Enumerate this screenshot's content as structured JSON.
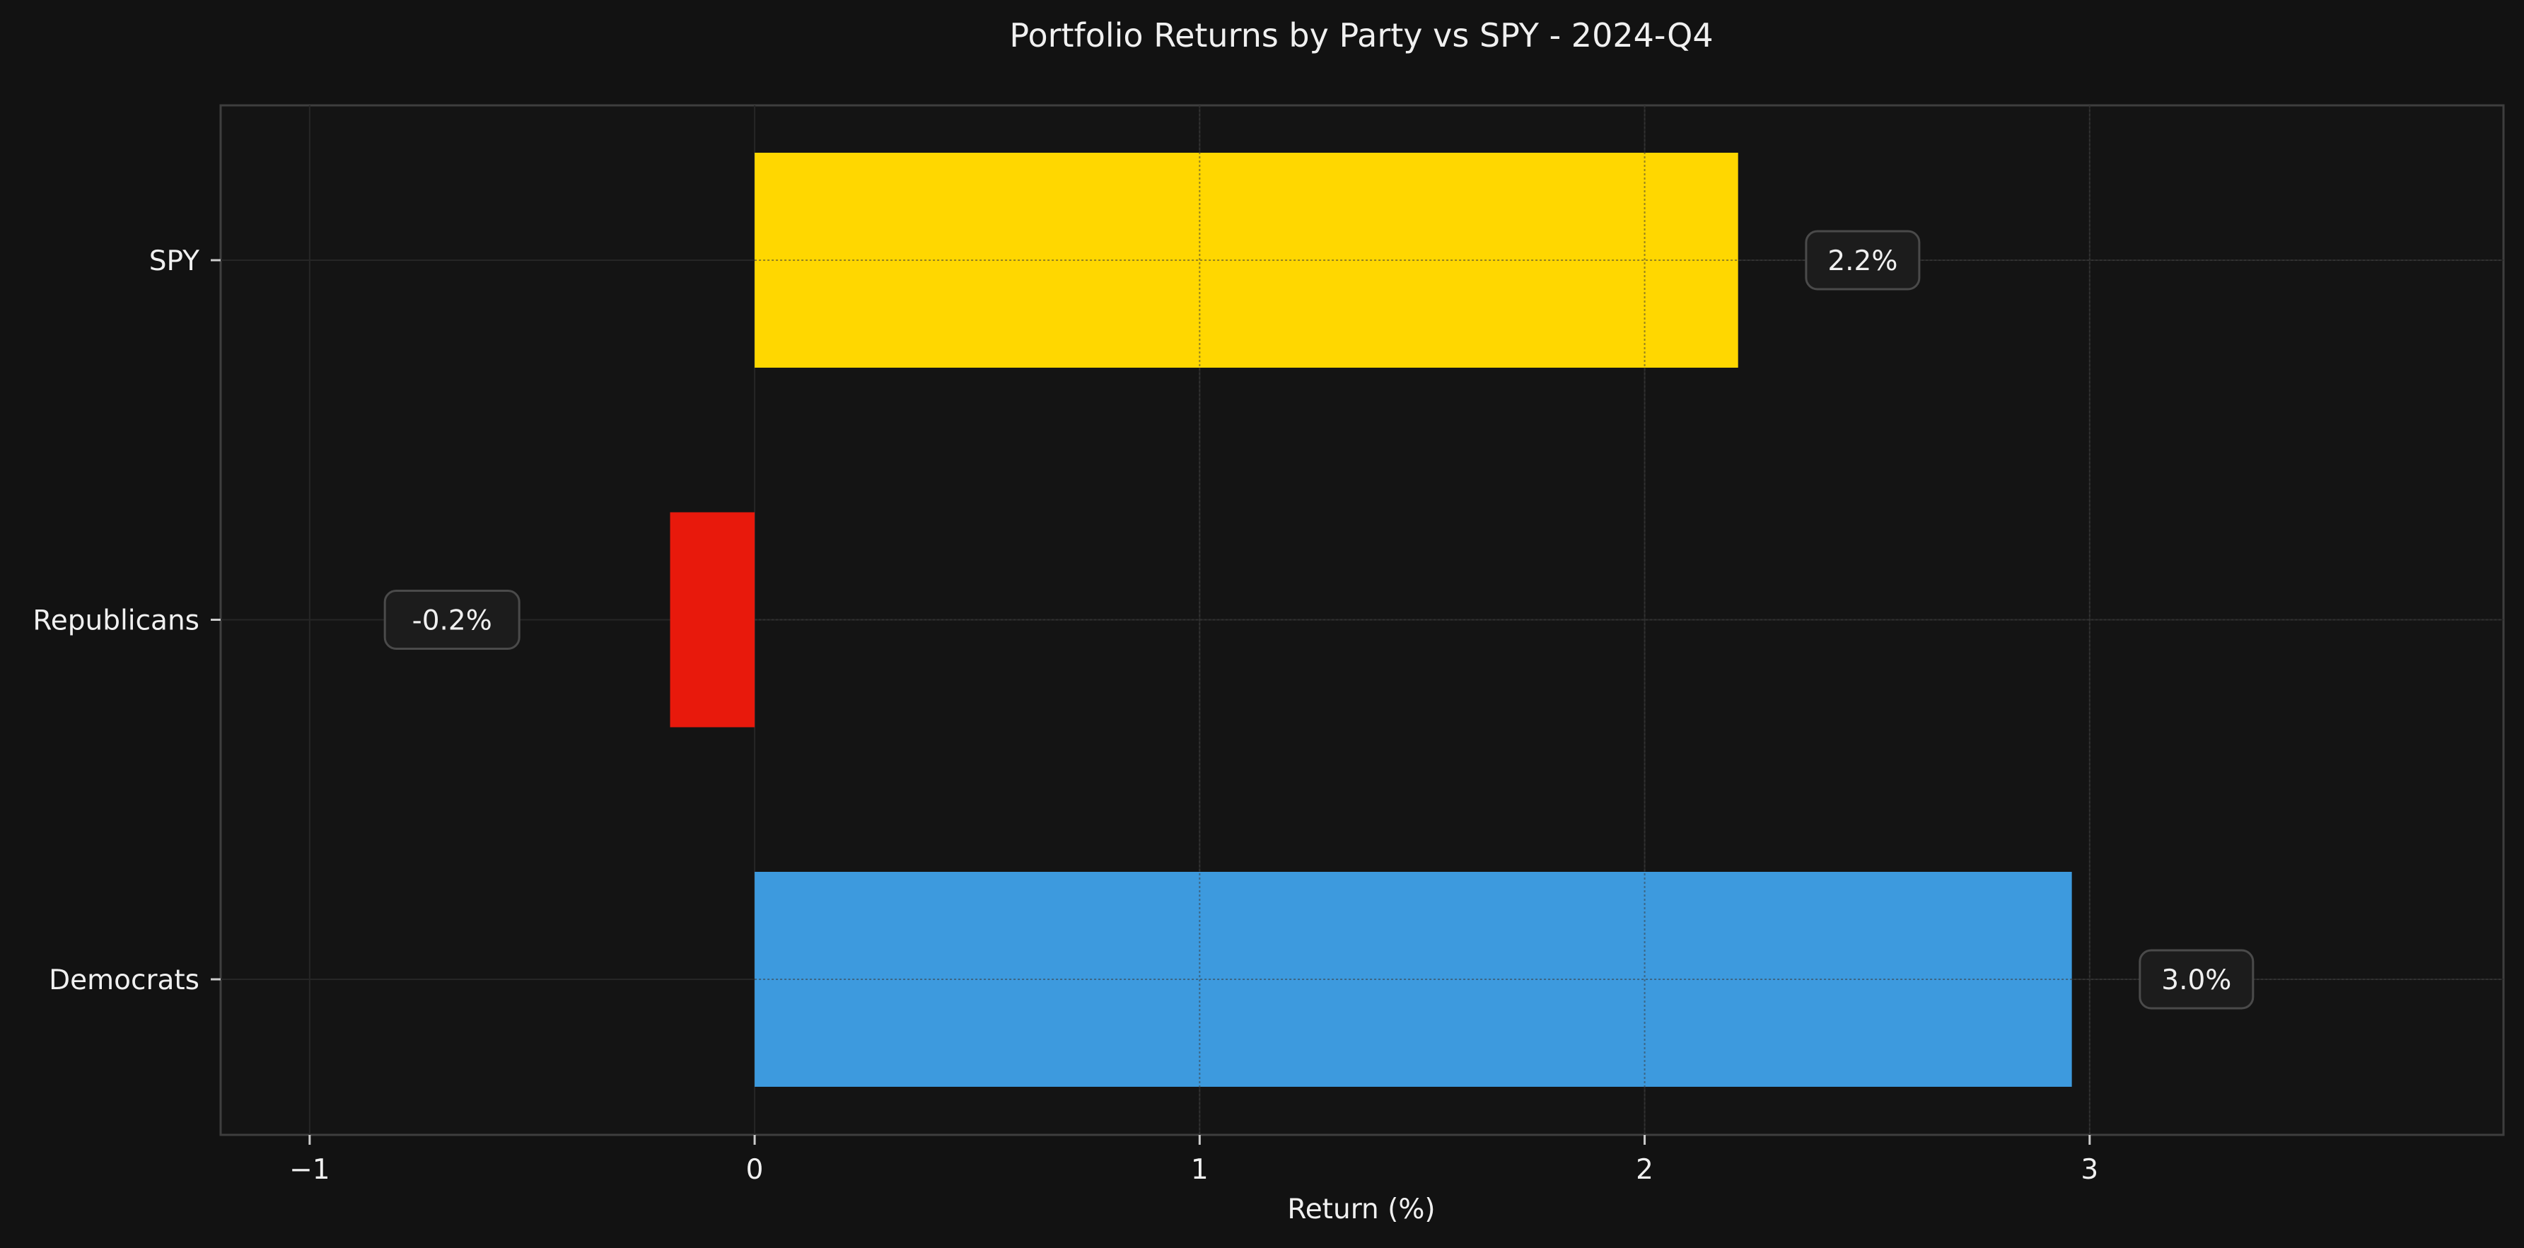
{
  "chart_data": {
    "type": "bar",
    "orientation": "horizontal",
    "title": "Portfolio Returns by Party vs SPY - 2024-Q4",
    "xlabel": "Return (%)",
    "ylabel": "",
    "xlim": [
      -1.2,
      3.93
    ],
    "x_ticks": [
      -1,
      0,
      1,
      2,
      3
    ],
    "x_tick_labels": [
      "−1",
      "0",
      "1",
      "2",
      "3"
    ],
    "grid": true,
    "categories": [
      "Democrats",
      "Republicans",
      "SPY"
    ],
    "values": [
      2.96,
      -0.19,
      2.21
    ],
    "data_labels": [
      "3.0%",
      "-0.2%",
      "2.2%"
    ],
    "colors": [
      "#3d9ade",
      "#e8190c",
      "#ffd700"
    ],
    "background": "#121212",
    "text_color": "#f0f0f0"
  }
}
